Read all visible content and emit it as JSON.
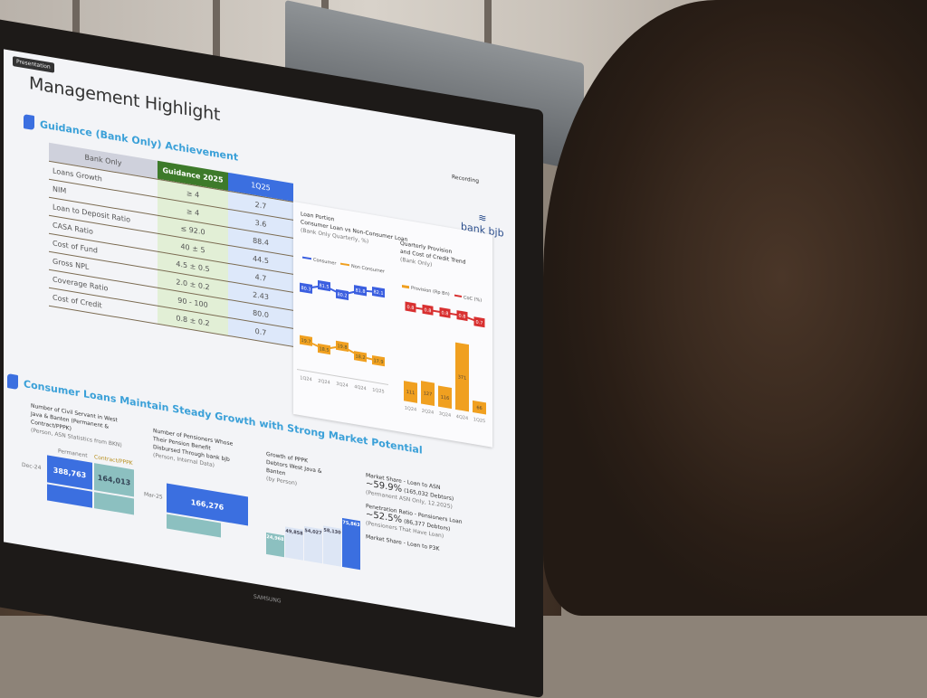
{
  "slide": {
    "badge": "Presentation",
    "title": "Management Highlight",
    "recording": "Recording",
    "logo": "bank bjb",
    "section1": "Guidance (Bank Only) Achievement",
    "table": {
      "headers": [
        "Bank Only",
        "Guidance 2025",
        "1Q25"
      ],
      "rows": [
        [
          "Loans Growth",
          "≥ 4",
          "2.7"
        ],
        [
          "NIM",
          "≥ 4",
          "3.6"
        ],
        [
          "Loan to Deposit Ratio",
          "≤ 92.0",
          "88.4"
        ],
        [
          "CASA Ratio",
          "40 ± 5",
          "44.5"
        ],
        [
          "Cost of Fund",
          "4.5 ± 0.5",
          "4.7"
        ],
        [
          "Gross NPL",
          "2.0 ± 0.2",
          "2.43"
        ],
        [
          "Coverage Ratio",
          "90 - 100",
          "80.0"
        ],
        [
          "Cost of Credit",
          "0.8 ± 0.2",
          "0.7"
        ]
      ]
    },
    "loan_portion": {
      "title": "Loan Portion",
      "subtitle": "Consumer Loan vs Non-Consumer Loan",
      "note": "(Bank Only Quarterly, %)",
      "legend": [
        "Consumer",
        "Non Consumer"
      ],
      "colors": [
        "#3b5fe0",
        "#f0a020"
      ]
    },
    "provision": {
      "title": "Quarterly Provision",
      "subtitle": "and Cost of Credit Trend",
      "note": "(Bank Only)",
      "legend": [
        "Provision (Rp Bn)",
        "CoC (%)"
      ],
      "colors": [
        "#f0a020",
        "#d83030"
      ]
    },
    "section2": "Consumer Loans Maintain Steady Growth with Strong Market Potential",
    "civil": {
      "title": "Number of Civil Servant in West Java & Banten (Permanent & Contract/PPPK)",
      "note": "(Person, ASN Statistics from BKN)",
      "legend": [
        "Permanent",
        "Contract/PPPK"
      ],
      "row_label": "Dec-24",
      "values": [
        "388,763",
        "164,013"
      ]
    },
    "pensioners": {
      "title": "Number of Pensioners Whose Their Pension Benefit Disbursed Through bank bjb",
      "note": "(Person, Internal Data)",
      "row_label": "Mar-25",
      "value": "166,276"
    },
    "pppk": {
      "title": "Growth of PPPK Debtors West Java & Banten",
      "note": "(by Person)",
      "values": [
        "24,968",
        "49,858",
        "54,027",
        "58,130",
        "75,863"
      ]
    },
    "market": {
      "ms_asn_label": "Market Share - Loan to ASN",
      "ms_asn_value": "~59.9%",
      "ms_asn_detail": "(165,032 Debtors)",
      "ms_asn_note": "(Permanent ASN Only, 12.2025)",
      "pen_label": "Penetration Ratio - Pensioners Loan",
      "pen_value": "~52.5%",
      "pen_detail": "(86,377 Debtors)",
      "pen_note": "(Pensioners That Have Loan)",
      "ms_pppk_label": "Market Share - Loan to P3K"
    },
    "monitor_brand": "SAMSUNG"
  },
  "chart_data": [
    {
      "type": "line",
      "categories": [
        "1Q24",
        "2Q24",
        "3Q24",
        "4Q24",
        "1Q25"
      ],
      "series": [
        {
          "name": "Consumer",
          "values": [
            80.3,
            81.5,
            80.2,
            81.8,
            82.1
          ]
        },
        {
          "name": "Non Consumer",
          "values": [
            19.7,
            18.5,
            19.8,
            18.2,
            17.9
          ]
        }
      ]
    },
    {
      "type": "bar",
      "categories": [
        "1Q24",
        "2Q24",
        "3Q24",
        "4Q24",
        "1Q25"
      ],
      "series": [
        {
          "name": "Provision (Rp Bn)",
          "values": [
            111,
            127,
            116,
            371,
            66
          ]
        },
        {
          "name": "CoC (%)",
          "values": [
            0.8,
            0.8,
            0.8,
            0.8,
            0.7
          ]
        }
      ]
    }
  ]
}
